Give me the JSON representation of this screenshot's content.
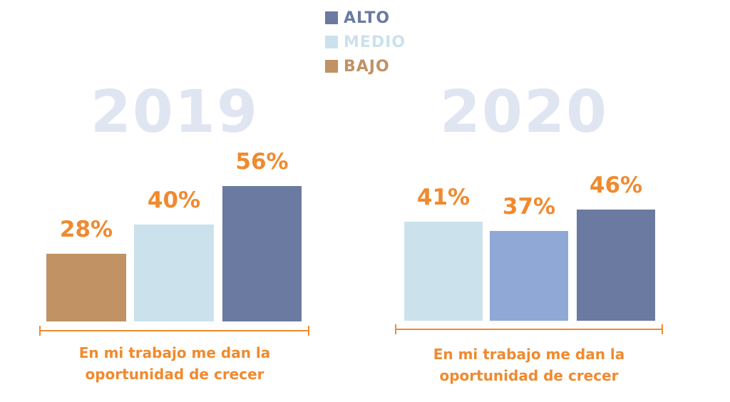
{
  "legend": {
    "items": [
      {
        "label": "ALTO",
        "color": "#6a7aa1"
      },
      {
        "label": "MEDIO",
        "color": "#cbe2ec"
      },
      {
        "label": "BAJO",
        "color": "#c09264"
      }
    ]
  },
  "colors": {
    "bajo": "#c09264",
    "medio": "#cbe2ec",
    "alto": "#6a7aa1",
    "extra": "#8fa8d6",
    "label": "#f08a2e",
    "year": "#dfe5f1"
  },
  "chart_data": [
    {
      "type": "bar",
      "title": "2019",
      "caption": "En mi trabajo me dan la oportunidad de crecer",
      "categories": [
        "BAJO",
        "MEDIO",
        "ALTO"
      ],
      "values": [
        28,
        40,
        56
      ],
      "value_labels": [
        "28%",
        "40%",
        "56%"
      ],
      "ylim": [
        0,
        100
      ]
    },
    {
      "type": "bar",
      "title": "2020",
      "caption": "En mi trabajo me dan la oportunidad de crecer",
      "categories": [
        "MEDIO",
        "",
        "ALTO"
      ],
      "values": [
        41,
        37,
        46
      ],
      "value_labels": [
        "41%",
        "37%",
        "46%"
      ],
      "ylim": [
        0,
        100
      ]
    }
  ]
}
